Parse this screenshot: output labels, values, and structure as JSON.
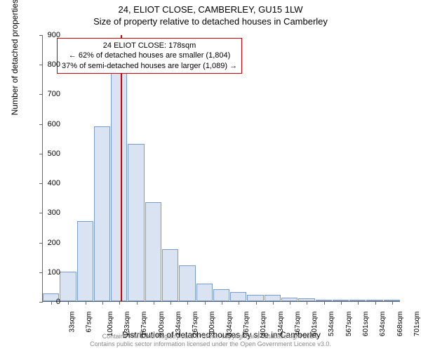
{
  "title_line1": "24, ELIOT CLOSE, CAMBERLEY, GU15 1LW",
  "title_line2": "Size of property relative to detached houses in Camberley",
  "chart": {
    "type": "histogram",
    "categories": [
      "33sqm",
      "67sqm",
      "100sqm",
      "133sqm",
      "167sqm",
      "200sqm",
      "234sqm",
      "267sqm",
      "300sqm",
      "334sqm",
      "367sqm",
      "401sqm",
      "434sqm",
      "467sqm",
      "501sqm",
      "534sqm",
      "567sqm",
      "601sqm",
      "634sqm",
      "668sqm",
      "701sqm"
    ],
    "values": [
      25,
      100,
      270,
      590,
      780,
      530,
      335,
      175,
      120,
      60,
      40,
      30,
      22,
      22,
      12,
      10,
      5,
      4,
      3,
      2,
      2
    ],
    "bar_fill": "#d9e3f2",
    "bar_stroke": "#7b9bc9",
    "ylim": [
      0,
      900
    ],
    "yticks": [
      0,
      100,
      200,
      300,
      400,
      500,
      600,
      700,
      800,
      900
    ],
    "ylabel": "Number of detached properties",
    "xlabel": "Distribution of detached houses by size in Camberley",
    "vline_value": 178,
    "vline_color": "#cc0000",
    "background": "#ffffff",
    "label_fontsize": 12,
    "tick_fontsize": 11
  },
  "annotation": {
    "line1": "24 ELIOT CLOSE: 178sqm",
    "line2": "← 62% of detached houses are smaller (1,804)",
    "line3": "37% of semi-detached houses are larger (1,089) →",
    "border_color": "#cc0000"
  },
  "footer": {
    "line1": "Contains HM Land Registry data © Crown copyright and database right 2024.",
    "line2": "Contains public sector information licensed under the Open Government Licence v3.0."
  }
}
